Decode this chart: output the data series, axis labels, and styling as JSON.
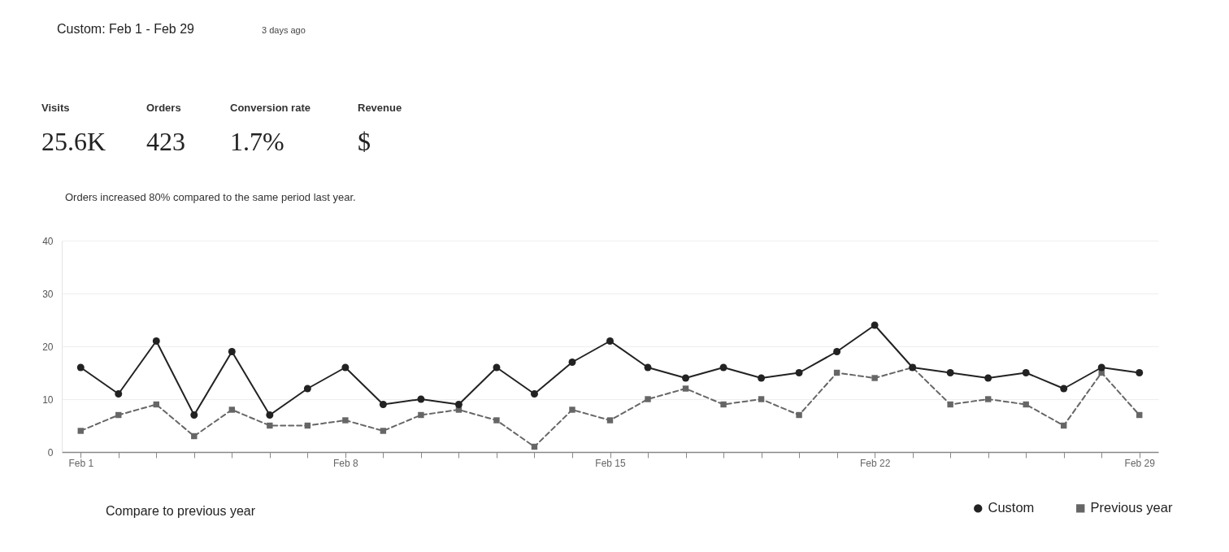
{
  "chart_data": {
    "type": "line",
    "title": "Custom: Feb 1 - Feb 29",
    "subtitle": "3 days ago",
    "annotations": [
      "Visits",
      "25.6K",
      "Orders",
      "423",
      "Conversion rate",
      "1.7%",
      "Revenue",
      "$",
      "Orders increased 80% compared to the same period last year.",
      "Compare to previous year"
    ],
    "categories": [
      "Feb 1",
      null,
      null,
      null,
      null,
      null,
      null,
      "Feb 8",
      null,
      null,
      null,
      null,
      null,
      null,
      "Feb 15",
      null,
      null,
      null,
      null,
      null,
      null,
      "Feb 22",
      null,
      null,
      null,
      null,
      null,
      null,
      "Feb 29"
    ],
    "series": [
      {
        "name": "Custom",
        "color": "#222222",
        "marker": "circle",
        "line_style": "solid",
        "values": [
          16,
          11,
          21,
          7,
          19,
          7,
          12,
          16,
          9,
          10,
          9,
          16,
          11,
          17,
          21,
          16,
          14,
          16,
          14,
          15,
          19,
          24,
          16,
          15,
          14,
          15,
          12,
          16,
          15
        ]
      },
      {
        "name": "Previous year",
        "color": "#666666",
        "marker": "square",
        "line_style": "dashed",
        "values": [
          4,
          7,
          9,
          3,
          8,
          5,
          5,
          6,
          4,
          7,
          8,
          6,
          1,
          8,
          6,
          10,
          12,
          9,
          10,
          7,
          15,
          14,
          16,
          9,
          10,
          9,
          5,
          15,
          7
        ]
      }
    ],
    "ylim": [
      0,
      40
    ],
    "yticks": [
      0,
      10,
      20,
      30,
      40
    ],
    "grid": "y",
    "legend": "bottom right"
  }
}
